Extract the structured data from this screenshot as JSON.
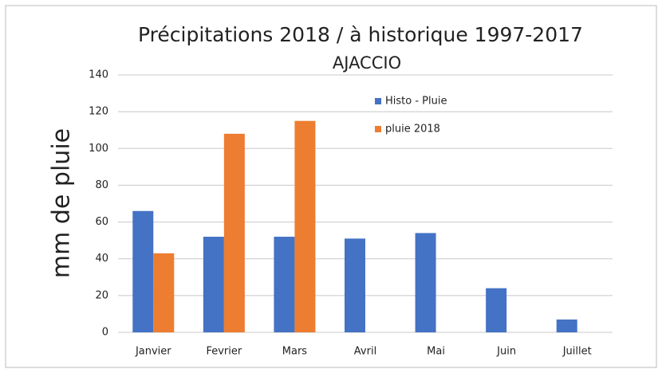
{
  "chart_data": {
    "type": "bar",
    "title": "Précipitations 2018 / à historique 1997-2017",
    "subtitle": "AJACCIO",
    "y_label": "mm de pluie",
    "categories": [
      "Janvier",
      "Fevrier",
      "Mars",
      "Avril",
      "Mai",
      "Juin",
      "Juillet"
    ],
    "series": [
      {
        "name": "Histo - Pluie",
        "color": "#4472c4",
        "values": [
          66,
          52,
          52,
          51,
          54,
          24,
          7
        ]
      },
      {
        "name": "pluie 2018",
        "color": "#ed7d31",
        "values": [
          43,
          108,
          115,
          null,
          null,
          null,
          null
        ]
      }
    ],
    "ylim": [
      0,
      140
    ],
    "yticks": [
      0,
      20,
      40,
      60,
      80,
      100,
      120,
      140
    ],
    "grid": true
  }
}
